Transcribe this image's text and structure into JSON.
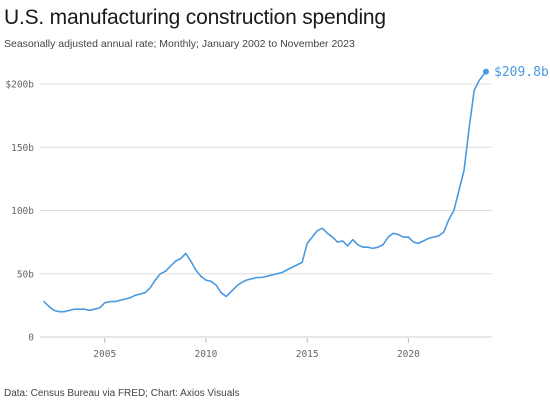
{
  "title": "U.S. manufacturing construction spending",
  "subtitle": "Seasonally adjusted annual rate; Monthly; January 2002 to November 2023",
  "source": "Data: Census Bureau via FRED; Chart: Axios Visuals",
  "chart_data": {
    "type": "line",
    "title": "U.S. manufacturing construction spending",
    "xlabel": "",
    "ylabel": "",
    "ylim": [
      0,
      200
    ],
    "xlim": [
      "2002-01",
      "2023-11"
    ],
    "y_ticks": [
      {
        "value": 0,
        "label": "0"
      },
      {
        "value": 50,
        "label": "50b"
      },
      {
        "value": 100,
        "label": "100b"
      },
      {
        "value": 150,
        "label": "150b"
      },
      {
        "value": 200,
        "label": "$200b"
      }
    ],
    "x_ticks": [
      {
        "value": "2005",
        "label": "2005"
      },
      {
        "value": "2010",
        "label": "2010"
      },
      {
        "value": "2015",
        "label": "2015"
      },
      {
        "value": "2020",
        "label": "2020"
      }
    ],
    "grid": "horizontal",
    "color": "#4a9ae0",
    "end_label": "$209.8b",
    "series": [
      {
        "x": [
          "2002-01",
          "2002-04",
          "2002-07",
          "2002-10",
          "2003-01",
          "2003-04",
          "2003-07",
          "2003-10",
          "2004-01",
          "2004-04",
          "2004-07",
          "2004-10",
          "2005-01",
          "2005-04",
          "2005-07",
          "2005-10",
          "2006-01",
          "2006-04",
          "2006-07",
          "2006-10",
          "2007-01",
          "2007-04",
          "2007-07",
          "2007-10",
          "2008-01",
          "2008-04",
          "2008-07",
          "2008-10",
          "2009-01",
          "2009-04",
          "2009-07",
          "2009-10",
          "2010-01",
          "2010-04",
          "2010-07",
          "2010-10",
          "2011-01",
          "2011-04",
          "2011-07",
          "2011-10",
          "2012-01",
          "2012-04",
          "2012-07",
          "2012-10",
          "2013-01",
          "2013-04",
          "2013-07",
          "2013-10",
          "2014-01",
          "2014-04",
          "2014-07",
          "2014-10",
          "2015-01",
          "2015-04",
          "2015-07",
          "2015-10",
          "2016-01",
          "2016-04",
          "2016-07",
          "2016-10",
          "2017-01",
          "2017-04",
          "2017-07",
          "2017-10",
          "2018-01",
          "2018-04",
          "2018-07",
          "2018-10",
          "2019-01",
          "2019-04",
          "2019-07",
          "2019-10",
          "2020-01",
          "2020-04",
          "2020-07",
          "2020-10",
          "2021-01",
          "2021-04",
          "2021-07",
          "2021-10",
          "2022-01",
          "2022-04",
          "2022-07",
          "2022-10",
          "2023-01",
          "2023-04",
          "2023-07",
          "2023-11"
        ],
        "values": [
          28,
          24,
          21,
          20,
          20,
          21,
          22,
          22,
          22,
          21,
          22,
          23,
          27,
          28,
          28,
          29,
          30,
          31,
          33,
          34,
          35,
          39,
          45,
          50,
          52,
          56,
          60,
          62,
          66,
          60,
          53,
          48,
          45,
          44,
          41,
          35,
          32,
          36,
          40,
          43,
          45,
          46,
          47,
          47,
          48,
          49,
          50,
          51,
          53,
          55,
          57,
          59,
          74,
          79,
          84,
          86,
          82,
          79,
          75,
          76,
          72,
          77,
          73,
          71,
          71,
          70,
          71,
          73,
          79,
          82,
          81,
          79,
          79,
          75,
          74,
          76,
          78,
          79,
          80,
          83,
          93,
          100,
          116,
          132,
          165,
          195,
          203,
          209.8
        ]
      }
    ]
  }
}
